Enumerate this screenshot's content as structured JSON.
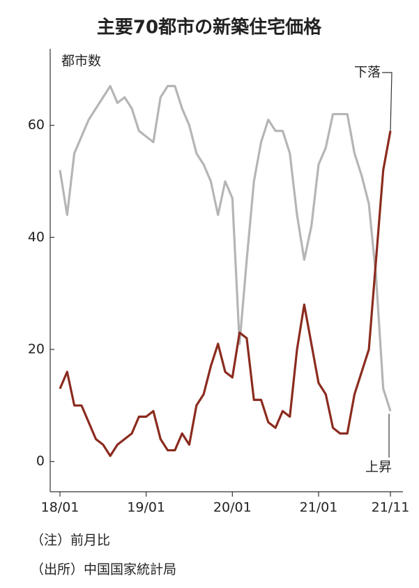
{
  "chart_data": {
    "type": "line",
    "title": "主要70都市の新築住宅価格",
    "y_label": "都市数",
    "x": [
      "18/01",
      null,
      null,
      null,
      null,
      null,
      null,
      null,
      null,
      null,
      null,
      null,
      "19/01",
      null,
      null,
      null,
      null,
      null,
      null,
      null,
      null,
      null,
      null,
      null,
      "20/01",
      null,
      null,
      null,
      null,
      null,
      null,
      null,
      null,
      null,
      null,
      null,
      "21/01",
      null,
      null,
      null,
      null,
      null,
      null,
      null,
      null,
      null,
      "21/11"
    ],
    "series": [
      {
        "name": "下落",
        "color": "#8b2b1f",
        "values": [
          13,
          16,
          10,
          10,
          7,
          4,
          3,
          1,
          3,
          4,
          5,
          8,
          8,
          9,
          4,
          2,
          2,
          5,
          3,
          10,
          12,
          17,
          21,
          16,
          15,
          23,
          22,
          11,
          11,
          7,
          6,
          9,
          8,
          20,
          28,
          21,
          14,
          12,
          6,
          5,
          5,
          12,
          16,
          20,
          36,
          52,
          59
        ]
      },
      {
        "name": "上昇",
        "color": "#b5b5b5",
        "values": [
          52,
          44,
          55,
          58,
          61,
          63,
          65,
          67,
          64,
          65,
          63,
          59,
          58,
          57,
          65,
          67,
          67,
          63,
          60,
          55,
          53,
          50,
          44,
          50,
          47,
          21,
          36,
          50,
          57,
          61,
          59,
          59,
          55,
          44,
          36,
          42,
          53,
          56,
          62,
          62,
          62,
          55,
          51,
          46,
          33,
          13,
          9
        ]
      }
    ],
    "ylim": [
      -5.4,
      73.4
    ],
    "yticks": [
      0,
      20,
      40,
      60
    ],
    "notes": [
      "（注）前月比",
      "（出所）中国国家統計局"
    ]
  }
}
